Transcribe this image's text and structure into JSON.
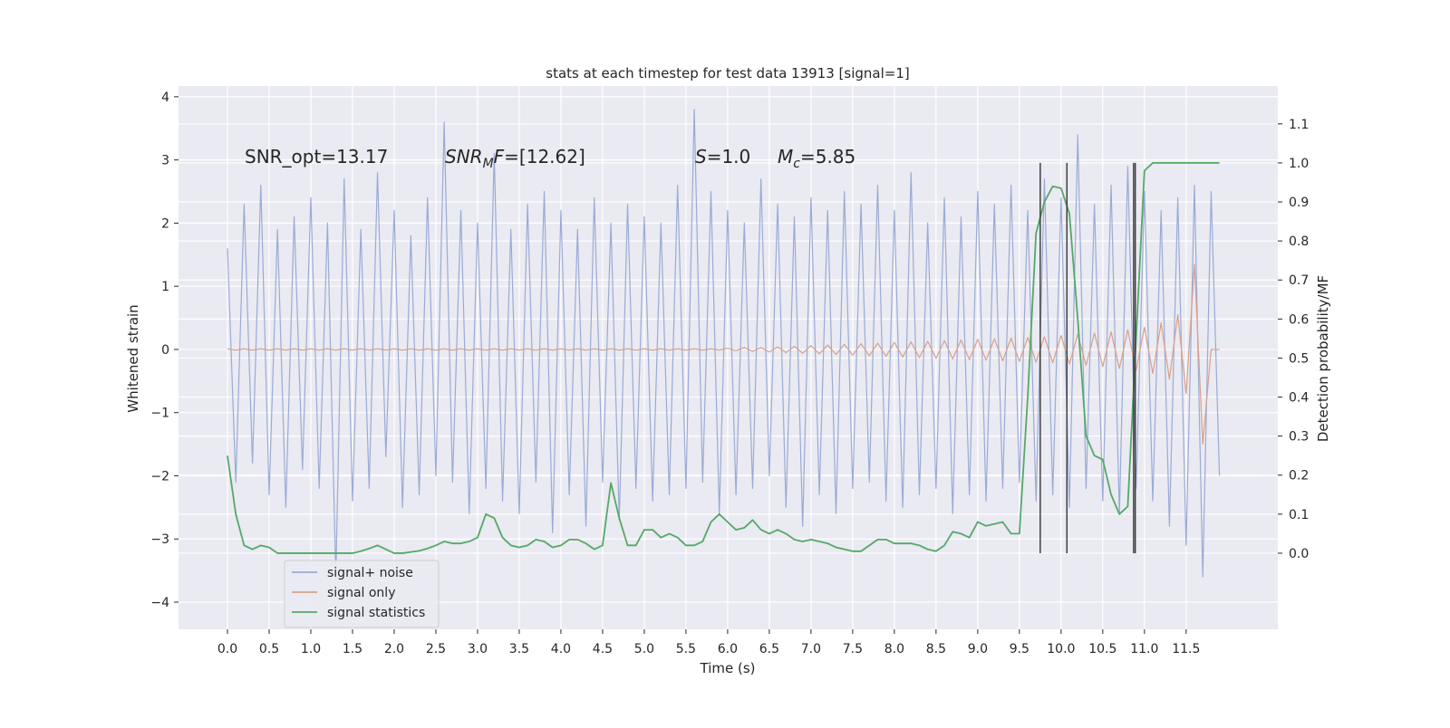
{
  "chart_data": {
    "type": "line",
    "title": "stats at each timestep for test data 13913 [signal=1]",
    "xlabel": "Time (s)",
    "ylabel": "Whitened strain",
    "y2label": "Detection probability/MF",
    "annotations": [
      [
        "SNR_opt=13.17"
      ],
      [
        "SNR",
        "M",
        "F",
        "=[12.62]"
      ],
      [
        "S",
        "=1.0"
      ],
      [
        "M",
        "c",
        "=5.85"
      ]
    ],
    "xlim": [
      -0.587,
      12.6
    ],
    "ylim": [
      -4.43,
      4.17
    ],
    "y2lim": [
      -0.195,
      1.197
    ],
    "xticks": [
      {
        "value": 0,
        "label": "0.0"
      },
      0.5,
      {
        "value": 1,
        "label": "1.0"
      },
      1.5,
      {
        "value": 2,
        "label": "2.0"
      },
      2.5,
      {
        "value": 3,
        "label": "3.0"
      },
      3.5,
      {
        "value": 4,
        "label": "4.0"
      },
      4.5,
      {
        "value": 5,
        "label": "5.0"
      },
      5.5,
      {
        "value": 6,
        "label": "6.0"
      },
      6.5,
      {
        "value": 7,
        "label": "7.0"
      },
      7.5,
      {
        "value": 8,
        "label": "8.0"
      },
      8.5,
      {
        "value": 9,
        "label": "9.0"
      },
      9.5,
      {
        "value": 10,
        "label": "10.0"
      },
      10.5,
      {
        "value": 11,
        "label": "11.0"
      },
      11.5
    ],
    "yticks": [
      {
        "value": -4,
        "label": "−4"
      },
      {
        "value": -3,
        "label": "−3"
      },
      {
        "value": -2,
        "label": "−2"
      },
      {
        "value": -1,
        "label": "−1"
      },
      0,
      1,
      2,
      3,
      4
    ],
    "y2ticks": [
      {
        "value": 0,
        "label": "0.0"
      },
      0.1,
      0.2,
      0.3,
      0.4,
      0.5,
      0.6,
      0.7,
      0.8,
      0.9,
      {
        "value": 1,
        "label": "1.0"
      },
      1.1
    ],
    "grid": true,
    "legend": "lower left",
    "vlines": [
      9.75,
      10.07,
      10.87,
      10.89
    ],
    "vline_range": [
      0,
      1
    ],
    "vline_color": "#404040",
    "x": [
      0,
      0.1,
      0.2,
      0.3,
      0.4,
      0.5,
      0.6,
      0.7,
      0.8,
      0.9,
      1,
      1.1,
      1.2,
      1.3,
      1.4,
      1.5,
      1.6,
      1.7,
      1.8,
      1.9,
      2,
      2.1,
      2.2,
      2.3,
      2.4,
      2.5,
      2.6,
      2.7,
      2.8,
      2.9,
      3,
      3.1,
      3.2,
      3.3,
      3.4,
      3.5,
      3.6,
      3.7,
      3.8,
      3.9,
      4,
      4.1,
      4.2,
      4.3,
      4.4,
      4.5,
      4.6,
      4.7,
      4.8,
      4.9,
      5,
      5.1,
      5.2,
      5.3,
      5.4,
      5.5,
      5.6,
      5.7,
      5.8,
      5.9,
      6,
      6.1,
      6.2,
      6.3,
      6.4,
      6.5,
      6.6,
      6.7,
      6.8,
      6.9,
      7,
      7.1,
      7.2,
      7.3,
      7.4,
      7.5,
      7.6,
      7.7,
      7.8,
      7.9,
      8,
      8.1,
      8.2,
      8.3,
      8.4,
      8.5,
      8.6,
      8.7,
      8.8,
      8.9,
      9,
      9.1,
      9.2,
      9.3,
      9.4,
      9.5,
      9.6,
      9.7,
      9.8,
      9.9,
      10,
      10.1,
      10.2,
      10.3,
      10.4,
      10.5,
      10.6,
      10.7,
      10.8,
      10.9,
      11,
      11.1,
      11.2,
      11.3,
      11.4,
      11.5,
      11.6,
      11.7,
      11.8,
      11.9
    ],
    "series": [
      {
        "name": "signal+ noise",
        "color": "#9aabd4",
        "values": [
          1.6,
          -2.1,
          2.3,
          -1.8,
          2.6,
          -2.3,
          1.9,
          -2.5,
          2.1,
          -1.9,
          2.4,
          -2.2,
          2.0,
          -3.6,
          2.7,
          -2.4,
          1.9,
          -2.2,
          2.8,
          -1.7,
          2.2,
          -2.5,
          1.8,
          -2.3,
          2.4,
          -2.0,
          3.6,
          -2.1,
          2.2,
          -2.6,
          2.0,
          -2.2,
          3.1,
          -2.4,
          1.9,
          -2.6,
          2.3,
          -2.1,
          2.5,
          -2.9,
          2.2,
          -2.3,
          1.9,
          -2.8,
          2.4,
          -2.1,
          2.0,
          -2.7,
          2.3,
          -2.2,
          2.1,
          -2.4,
          2.0,
          -2.3,
          2.6,
          -2.2,
          3.8,
          -2.1,
          2.5,
          -2.6,
          2.2,
          -2.3,
          2.0,
          -2.2,
          2.7,
          -2.0,
          2.3,
          -2.5,
          2.1,
          -2.8,
          2.4,
          -2.3,
          2.2,
          -2.6,
          2.5,
          -2.2,
          2.3,
          -2.1,
          2.6,
          -2.4,
          2.2,
          -2.5,
          2.8,
          -2.3,
          2.0,
          -2.2,
          2.4,
          -2.6,
          2.1,
          -2.3,
          2.5,
          -2.4,
          2.3,
          -2.2,
          2.6,
          -2.1,
          2.2,
          -2.4,
          2.7,
          -2.3,
          2.4,
          -2.5,
          3.4,
          -2.2,
          2.3,
          -2.4,
          2.6,
          -2.6,
          2.9,
          -2.2,
          2.5,
          -2.4,
          2.2,
          -2.8,
          2.4,
          -3.1,
          2.6,
          -3.6,
          2.5,
          -2.0
        ]
      },
      {
        "name": "signal only",
        "color": "#d9a08a",
        "values": [
          0.01,
          -0.01,
          0.01,
          -0.01,
          0.01,
          -0.01,
          0.01,
          -0.01,
          0.01,
          -0.01,
          0.01,
          -0.01,
          0.01,
          -0.01,
          0.01,
          -0.01,
          0.01,
          -0.01,
          0.01,
          -0.01,
          0.01,
          -0.01,
          0.01,
          -0.01,
          0.01,
          -0.01,
          0.01,
          -0.01,
          0.01,
          -0.01,
          0.01,
          -0.01,
          0.01,
          -0.01,
          0.01,
          -0.01,
          0.01,
          -0.01,
          0.01,
          -0.01,
          0.01,
          -0.01,
          0.01,
          -0.01,
          0.01,
          -0.01,
          0.01,
          -0.01,
          0.01,
          -0.01,
          0.01,
          -0.01,
          0.01,
          -0.01,
          0.01,
          -0.01,
          0.01,
          -0.01,
          0.01,
          -0.01,
          0.02,
          -0.02,
          0.03,
          -0.03,
          0.03,
          -0.04,
          0.04,
          -0.05,
          0.05,
          -0.06,
          0.06,
          -0.07,
          0.07,
          -0.08,
          0.08,
          -0.09,
          0.09,
          -0.1,
          0.1,
          -0.11,
          0.11,
          -0.12,
          0.12,
          -0.13,
          0.13,
          -0.14,
          0.14,
          -0.15,
          0.15,
          -0.16,
          0.16,
          -0.17,
          0.17,
          -0.18,
          0.18,
          -0.19,
          0.19,
          -0.2,
          0.2,
          -0.21,
          0.22,
          -0.23,
          0.24,
          -0.25,
          0.26,
          -0.27,
          0.28,
          -0.3,
          0.31,
          -0.33,
          0.35,
          -0.38,
          0.42,
          -0.47,
          0.55,
          -0.7,
          1.35,
          -1.5,
          0.0,
          0.0
        ]
      },
      {
        "name": "signal statistics",
        "color": "#55a868",
        "axis": "y2",
        "values": [
          0.25,
          0.1,
          0.02,
          0.01,
          0.02,
          0.015,
          0.0,
          0.0,
          0.0,
          0.0,
          0.0,
          0.0,
          0.0,
          0.0,
          0.0,
          0.0,
          0.005,
          0.012,
          0.02,
          0.01,
          0.0,
          0.0,
          0.003,
          0.006,
          0.012,
          0.02,
          0.03,
          0.025,
          0.025,
          0.03,
          0.04,
          0.1,
          0.09,
          0.04,
          0.02,
          0.015,
          0.02,
          0.035,
          0.03,
          0.015,
          0.02,
          0.035,
          0.035,
          0.025,
          0.01,
          0.02,
          0.18,
          0.09,
          0.02,
          0.02,
          0.06,
          0.06,
          0.04,
          0.05,
          0.04,
          0.02,
          0.02,
          0.03,
          0.08,
          0.1,
          0.08,
          0.06,
          0.065,
          0.085,
          0.06,
          0.05,
          0.06,
          0.05,
          0.035,
          0.03,
          0.035,
          0.03,
          0.025,
          0.015,
          0.01,
          0.005,
          0.005,
          0.02,
          0.035,
          0.035,
          0.025,
          0.025,
          0.025,
          0.02,
          0.01,
          0.005,
          0.02,
          0.055,
          0.05,
          0.04,
          0.08,
          0.07,
          0.075,
          0.08,
          0.05,
          0.05,
          0.4,
          0.82,
          0.9,
          0.94,
          0.935,
          0.87,
          0.6,
          0.3,
          0.25,
          0.24,
          0.15,
          0.1,
          0.12,
          0.55,
          0.98,
          1.0,
          1.0,
          1.0,
          1.0,
          1.0,
          1.0,
          1.0,
          1.0,
          1.0
        ]
      }
    ]
  }
}
